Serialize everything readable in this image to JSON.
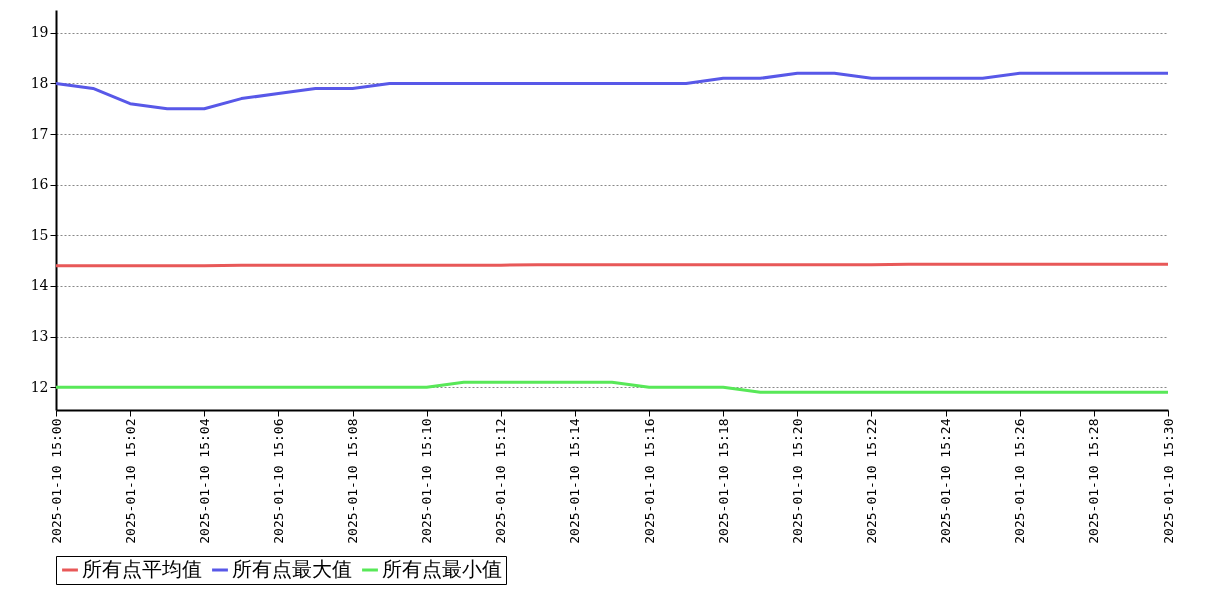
{
  "chart_data": {
    "type": "line",
    "x": [
      "2025-01-10T15:00",
      "2025-01-10T15:01",
      "2025-01-10T15:02",
      "2025-01-10T15:03",
      "2025-01-10T15:04",
      "2025-01-10T15:05",
      "2025-01-10T15:06",
      "2025-01-10T15:07",
      "2025-01-10T15:08",
      "2025-01-10T15:09",
      "2025-01-10T15:10",
      "2025-01-10T15:11",
      "2025-01-10T15:12",
      "2025-01-10T15:13",
      "2025-01-10T15:14",
      "2025-01-10T15:15",
      "2025-01-10T15:16",
      "2025-01-10T15:17",
      "2025-01-10T15:18",
      "2025-01-10T15:19",
      "2025-01-10T15:20",
      "2025-01-10T15:21",
      "2025-01-10T15:22",
      "2025-01-10T15:23",
      "2025-01-10T15:24",
      "2025-01-10T15:25",
      "2025-01-10T15:26",
      "2025-01-10T15:27",
      "2025-01-10T15:28",
      "2025-01-10T15:29",
      "2025-01-10T15:30"
    ],
    "series": [
      {
        "name": "所有点平均值",
        "color": "#e85858",
        "values": [
          14.4,
          14.4,
          14.4,
          14.4,
          14.4,
          14.41,
          14.41,
          14.41,
          14.41,
          14.41,
          14.41,
          14.41,
          14.41,
          14.42,
          14.42,
          14.42,
          14.42,
          14.42,
          14.42,
          14.42,
          14.42,
          14.42,
          14.42,
          14.43,
          14.43,
          14.43,
          14.43,
          14.43,
          14.43,
          14.43,
          14.43
        ]
      },
      {
        "name": "所有点最大值",
        "color": "#5858e8",
        "values": [
          18.0,
          17.9,
          17.6,
          17.5,
          17.5,
          17.7,
          17.8,
          17.9,
          17.9,
          18.0,
          18.0,
          18.0,
          18.0,
          18.0,
          18.0,
          18.0,
          18.0,
          18.0,
          18.1,
          18.1,
          18.2,
          18.2,
          18.1,
          18.1,
          18.1,
          18.1,
          18.2,
          18.2,
          18.2,
          18.2,
          18.2
        ]
      },
      {
        "name": "所有点最小值",
        "color": "#58e858",
        "values": [
          12.0,
          12.0,
          12.0,
          12.0,
          12.0,
          12.0,
          12.0,
          12.0,
          12.0,
          12.0,
          12.0,
          12.1,
          12.1,
          12.1,
          12.1,
          12.1,
          12.0,
          12.0,
          12.0,
          11.9,
          11.9,
          11.9,
          11.9,
          11.9,
          11.9,
          11.9,
          11.9,
          11.9,
          11.9,
          11.9,
          11.9
        ]
      }
    ],
    "xlim": [
      "2025-01-10T15:00",
      "2025-01-10T15:30"
    ],
    "xticks": [
      {
        "value": "2025-01-10T15:00",
        "label": "2025-01-10  15:00"
      },
      {
        "value": "2025-01-10T15:02",
        "label": "2025-01-10  15:02"
      },
      {
        "value": "2025-01-10T15:04",
        "label": "2025-01-10  15:04"
      },
      {
        "value": "2025-01-10T15:06",
        "label": "2025-01-10  15:06"
      },
      {
        "value": "2025-01-10T15:08",
        "label": "2025-01-10  15:08"
      },
      {
        "value": "2025-01-10T15:10",
        "label": "2025-01-10  15:10"
      },
      {
        "value": "2025-01-10T15:12",
        "label": "2025-01-10  15:12"
      },
      {
        "value": "2025-01-10T15:14",
        "label": "2025-01-10  15:14"
      },
      {
        "value": "2025-01-10T15:16",
        "label": "2025-01-10  15:16"
      },
      {
        "value": "2025-01-10T15:18",
        "label": "2025-01-10  15:18"
      },
      {
        "value": "2025-01-10T15:20",
        "label": "2025-01-10  15:20"
      },
      {
        "value": "2025-01-10T15:22",
        "label": "2025-01-10  15:22"
      },
      {
        "value": "2025-01-10T15:24",
        "label": "2025-01-10  15:24"
      },
      {
        "value": "2025-01-10T15:26",
        "label": "2025-01-10  15:26"
      },
      {
        "value": "2025-01-10T15:28",
        "label": "2025-01-10  15:28"
      },
      {
        "value": "2025-01-10T15:30",
        "label": "2025-01-10  15:30"
      }
    ],
    "ylim": [
      11.55,
      19.45
    ],
    "yticks": [
      12,
      13,
      14,
      15,
      16,
      17,
      18,
      19
    ],
    "grid": "y",
    "legend": "bottom",
    "marker": "none",
    "line_style": "solid"
  }
}
